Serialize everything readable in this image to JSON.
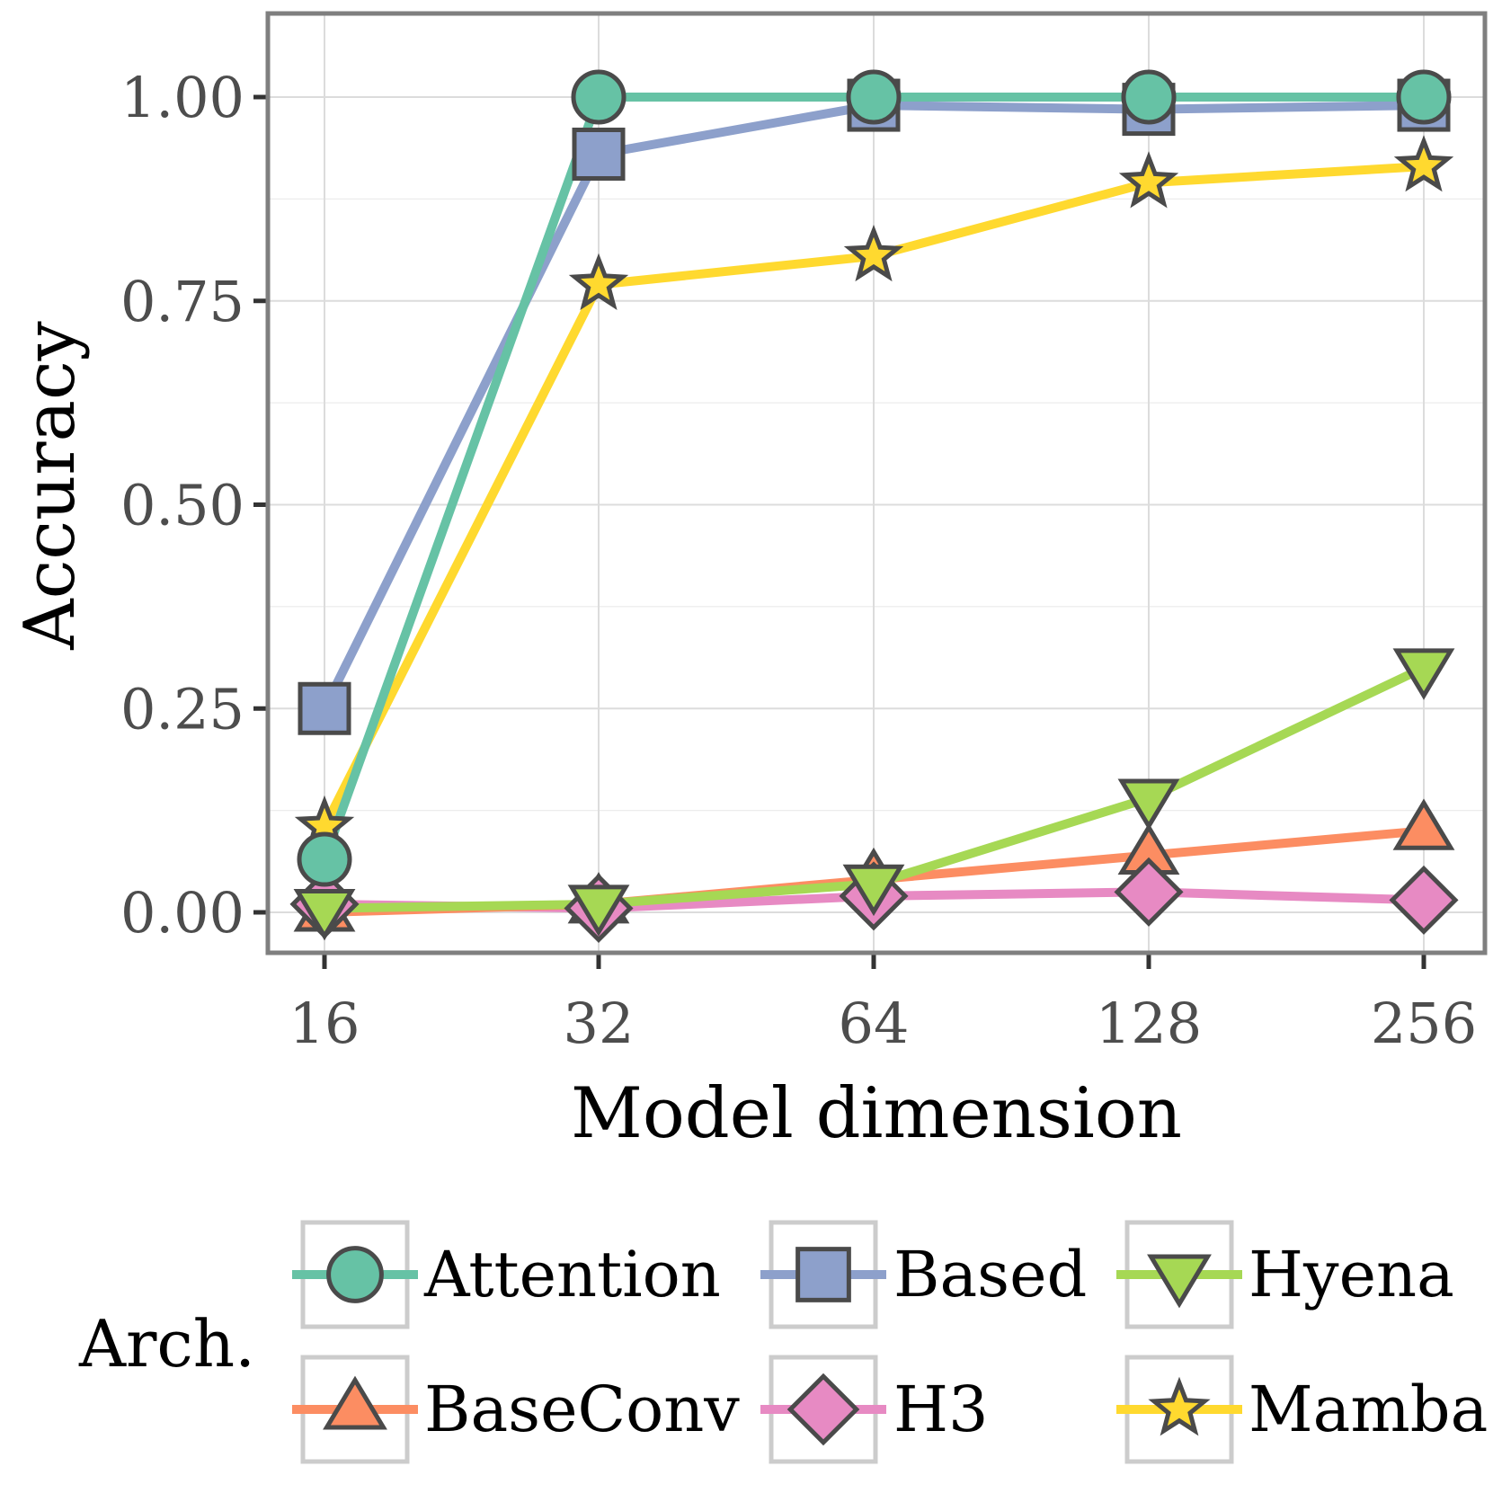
{
  "chart_data": {
    "type": "line",
    "title": "",
    "xlabel": "Model dimension",
    "ylabel": "Accuracy",
    "categories": [
      "16",
      "32",
      "64",
      "128",
      "256"
    ],
    "y_ticks": [
      "0.00",
      "0.25",
      "0.50",
      "0.75",
      "1.00"
    ],
    "y_tick_values": [
      0,
      0.25,
      0.5,
      0.75,
      1.0
    ],
    "ylim": [
      -0.05,
      1.1
    ],
    "grid": true,
    "legend_title": "Arch.",
    "legend_position": "bottom",
    "series": [
      {
        "name": "Attention",
        "marker": "circle",
        "color": "#66c2a5",
        "values": [
          0.065,
          1.0,
          1.0,
          1.0,
          1.0
        ]
      },
      {
        "name": "Based",
        "marker": "square",
        "color": "#8da0cb",
        "values": [
          0.25,
          0.93,
          0.99,
          0.985,
          0.99
        ]
      },
      {
        "name": "Hyena",
        "marker": "triangle-down",
        "color": "#a6d854",
        "values": [
          0.005,
          0.01,
          0.035,
          0.14,
          0.3
        ]
      },
      {
        "name": "BaseConv",
        "marker": "triangle-up",
        "color": "#fc8d62",
        "values": [
          0.0,
          0.01,
          0.04,
          0.07,
          0.1
        ]
      },
      {
        "name": "H3",
        "marker": "diamond",
        "color": "#e78ac3",
        "values": [
          0.01,
          0.005,
          0.02,
          0.025,
          0.015
        ]
      },
      {
        "name": "Mamba",
        "marker": "star",
        "color": "#ffd92f",
        "values": [
          0.105,
          0.77,
          0.805,
          0.895,
          0.915
        ]
      }
    ]
  }
}
